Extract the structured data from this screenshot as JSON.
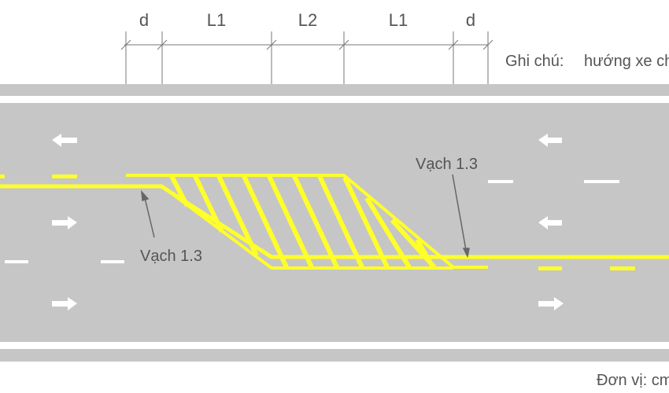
{
  "dimensions": {
    "labels": [
      "d",
      "L1",
      "L2",
      "L1",
      "d"
    ]
  },
  "legend": {
    "note_label": "Ghi chú:",
    "direction_label": "hướng xe chạy"
  },
  "callouts": {
    "left": "Vạch 1.3",
    "right": "Vạch 1.3"
  },
  "unit_label": "Đơn vị: cm",
  "colors": {
    "road": "#c6c6c6",
    "marking_yellow": "#ffff2a",
    "marking_white": "#ffffff",
    "text": "#555555"
  }
}
